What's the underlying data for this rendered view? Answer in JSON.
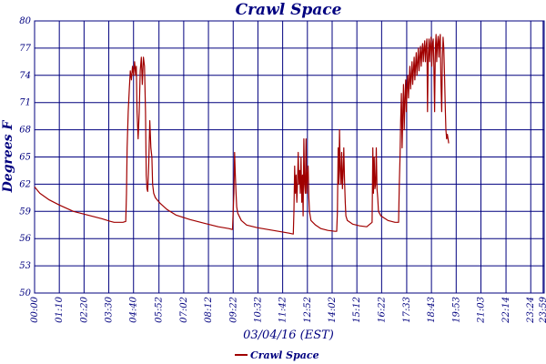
{
  "chart_data": {
    "type": "line",
    "title": "Crawl Space",
    "xlabel": "03/04/16 (EST)",
    "ylabel": "Degrees F",
    "ylim": [
      50,
      80
    ],
    "yticks": [
      50,
      53,
      56,
      59,
      62,
      65,
      68,
      71,
      74,
      77,
      80
    ],
    "xlim": [
      0,
      1442
    ],
    "x_tick_labels": [
      "00:00",
      "01:10",
      "02:20",
      "03:30",
      "04:40",
      "05:52",
      "07:02",
      "08:12",
      "09:22",
      "10:32",
      "11:42",
      "12:52",
      "14:02",
      "15:12",
      "16:22",
      "17:33",
      "18:43",
      "19:53",
      "21:03",
      "22:14",
      "23:24",
      "23:59"
    ],
    "x_tick_minutes": [
      0,
      70,
      140,
      210,
      280,
      352,
      422,
      492,
      562,
      632,
      702,
      772,
      842,
      912,
      982,
      1053,
      1123,
      1193,
      1263,
      1334,
      1404,
      1439
    ],
    "grid": true,
    "legend_position": "bottom-left",
    "series": [
      {
        "name": "Crawl Space",
        "color": "#a00000",
        "points": [
          [
            0,
            61.7
          ],
          [
            15,
            61.0
          ],
          [
            40,
            60.3
          ],
          [
            70,
            59.7
          ],
          [
            110,
            59.0
          ],
          [
            150,
            58.6
          ],
          [
            190,
            58.2
          ],
          [
            215,
            57.9
          ],
          [
            225,
            57.8
          ],
          [
            250,
            57.8
          ],
          [
            258,
            57.9
          ],
          [
            260,
            61.0
          ],
          [
            262,
            66.0
          ],
          [
            265,
            70.0
          ],
          [
            268,
            72.5
          ],
          [
            271,
            74.5
          ],
          [
            274,
            73.5
          ],
          [
            277,
            75.0
          ],
          [
            280,
            74.0
          ],
          [
            283,
            75.5
          ],
          [
            286,
            74.0
          ],
          [
            288,
            75.0
          ],
          [
            290,
            70.0
          ],
          [
            293,
            67.0
          ],
          [
            296,
            70.0
          ],
          [
            299,
            74.5
          ],
          [
            302,
            76.0
          ],
          [
            305,
            73.0
          ],
          [
            308,
            76.0
          ],
          [
            311,
            75.0
          ],
          [
            314,
            70.0
          ],
          [
            316,
            63.0
          ],
          [
            318,
            61.5
          ],
          [
            320,
            61.2
          ],
          [
            323,
            64.0
          ],
          [
            326,
            69.0
          ],
          [
            329,
            66.0
          ],
          [
            332,
            65.0
          ],
          [
            334,
            62.0
          ],
          [
            337,
            61.0
          ],
          [
            342,
            60.5
          ],
          [
            355,
            59.9
          ],
          [
            375,
            59.2
          ],
          [
            400,
            58.6
          ],
          [
            440,
            58.1
          ],
          [
            480,
            57.7
          ],
          [
            520,
            57.3
          ],
          [
            550,
            57.1
          ],
          [
            560,
            57.0
          ],
          [
            564,
            61.0
          ],
          [
            566,
            65.5
          ],
          [
            568,
            63.0
          ],
          [
            570,
            61.0
          ],
          [
            572,
            59.5
          ],
          [
            575,
            58.8
          ],
          [
            585,
            58.0
          ],
          [
            600,
            57.5
          ],
          [
            630,
            57.2
          ],
          [
            660,
            57.0
          ],
          [
            690,
            56.8
          ],
          [
            720,
            56.6
          ],
          [
            732,
            56.5
          ],
          [
            734,
            59.0
          ],
          [
            736,
            64.0
          ],
          [
            738,
            61.0
          ],
          [
            740,
            63.0
          ],
          [
            742,
            60.0
          ],
          [
            744,
            62.0
          ],
          [
            746,
            65.5
          ],
          [
            748,
            62.0
          ],
          [
            750,
            63.5
          ],
          [
            752,
            61.0
          ],
          [
            754,
            65.0
          ],
          [
            756,
            60.0
          ],
          [
            758,
            63.0
          ],
          [
            760,
            58.5
          ],
          [
            762,
            67.0
          ],
          [
            764,
            62.0
          ],
          [
            766,
            61.0
          ],
          [
            768,
            67.0
          ],
          [
            770,
            61.0
          ],
          [
            772,
            63.0
          ],
          [
            774,
            64.0
          ],
          [
            776,
            60.5
          ],
          [
            778,
            59.0
          ],
          [
            782,
            58.0
          ],
          [
            795,
            57.5
          ],
          [
            810,
            57.1
          ],
          [
            830,
            56.9
          ],
          [
            850,
            56.8
          ],
          [
            855,
            56.8
          ],
          [
            857,
            59.0
          ],
          [
            859,
            66.0
          ],
          [
            861,
            62.0
          ],
          [
            863,
            68.0
          ],
          [
            865,
            63.5
          ],
          [
            867,
            62.0
          ],
          [
            869,
            65.5
          ],
          [
            871,
            61.5
          ],
          [
            873,
            63.0
          ],
          [
            875,
            66.0
          ],
          [
            877,
            62.5
          ],
          [
            879,
            60.0
          ],
          [
            881,
            58.5
          ],
          [
            885,
            58.0
          ],
          [
            900,
            57.6
          ],
          [
            920,
            57.4
          ],
          [
            940,
            57.3
          ],
          [
            955,
            57.8
          ],
          [
            957,
            66.0
          ],
          [
            959,
            61.0
          ],
          [
            961,
            65.0
          ],
          [
            963,
            61.5
          ],
          [
            965,
            62.0
          ],
          [
            967,
            66.0
          ],
          [
            969,
            61.5
          ],
          [
            971,
            60.5
          ],
          [
            973,
            59.0
          ],
          [
            980,
            58.5
          ],
          [
            1000,
            58.0
          ],
          [
            1020,
            57.8
          ],
          [
            1030,
            57.8
          ],
          [
            1032,
            62.0
          ],
          [
            1034,
            65.0
          ],
          [
            1036,
            69.0
          ],
          [
            1038,
            72.0
          ],
          [
            1040,
            66.0
          ],
          [
            1042,
            70.0
          ],
          [
            1044,
            73.0
          ],
          [
            1046,
            68.0
          ],
          [
            1048,
            71.5
          ],
          [
            1050,
            73.5
          ],
          [
            1052,
            70.0
          ],
          [
            1054,
            72.5
          ],
          [
            1056,
            74.0
          ],
          [
            1058,
            71.5
          ],
          [
            1060,
            73.5
          ],
          [
            1062,
            75.0
          ],
          [
            1064,
            72.5
          ],
          [
            1066,
            74.0
          ],
          [
            1068,
            75.5
          ],
          [
            1070,
            73.0
          ],
          [
            1072,
            74.5
          ],
          [
            1074,
            76.0
          ],
          [
            1076,
            73.5
          ],
          [
            1078,
            75.0
          ],
          [
            1080,
            76.5
          ],
          [
            1082,
            74.0
          ],
          [
            1084,
            75.5
          ],
          [
            1086,
            77.0
          ],
          [
            1088,
            74.5
          ],
          [
            1090,
            76.0
          ],
          [
            1092,
            77.2
          ],
          [
            1094,
            75.0
          ],
          [
            1096,
            76.5
          ],
          [
            1098,
            77.5
          ],
          [
            1100,
            75.5
          ],
          [
            1102,
            77.0
          ],
          [
            1104,
            77.8
          ],
          [
            1106,
            75.5
          ],
          [
            1108,
            77.2
          ],
          [
            1110,
            78.0
          ],
          [
            1112,
            70.0
          ],
          [
            1114,
            76.0
          ],
          [
            1116,
            78.0
          ],
          [
            1118,
            75.5
          ],
          [
            1120,
            77.5
          ],
          [
            1122,
            78.2
          ],
          [
            1124,
            75.0
          ],
          [
            1126,
            77.5
          ],
          [
            1128,
            78.0
          ],
          [
            1130,
            75.0
          ],
          [
            1132,
            70.0
          ],
          [
            1134,
            77.0
          ],
          [
            1136,
            78.5
          ],
          [
            1138,
            75.5
          ],
          [
            1140,
            77.5
          ],
          [
            1142,
            78.3
          ],
          [
            1144,
            76.0
          ],
          [
            1146,
            77.8
          ],
          [
            1148,
            78.5
          ],
          [
            1150,
            73.0
          ],
          [
            1152,
            70.0
          ],
          [
            1154,
            76.0
          ],
          [
            1156,
            78.2
          ],
          [
            1158,
            77.0
          ],
          [
            1160,
            74.0
          ],
          [
            1162,
            70.5
          ],
          [
            1164,
            68.0
          ],
          [
            1166,
            67.0
          ],
          [
            1168,
            67.5
          ],
          [
            1170,
            67.0
          ],
          [
            1172,
            66.5
          ]
        ]
      }
    ]
  }
}
